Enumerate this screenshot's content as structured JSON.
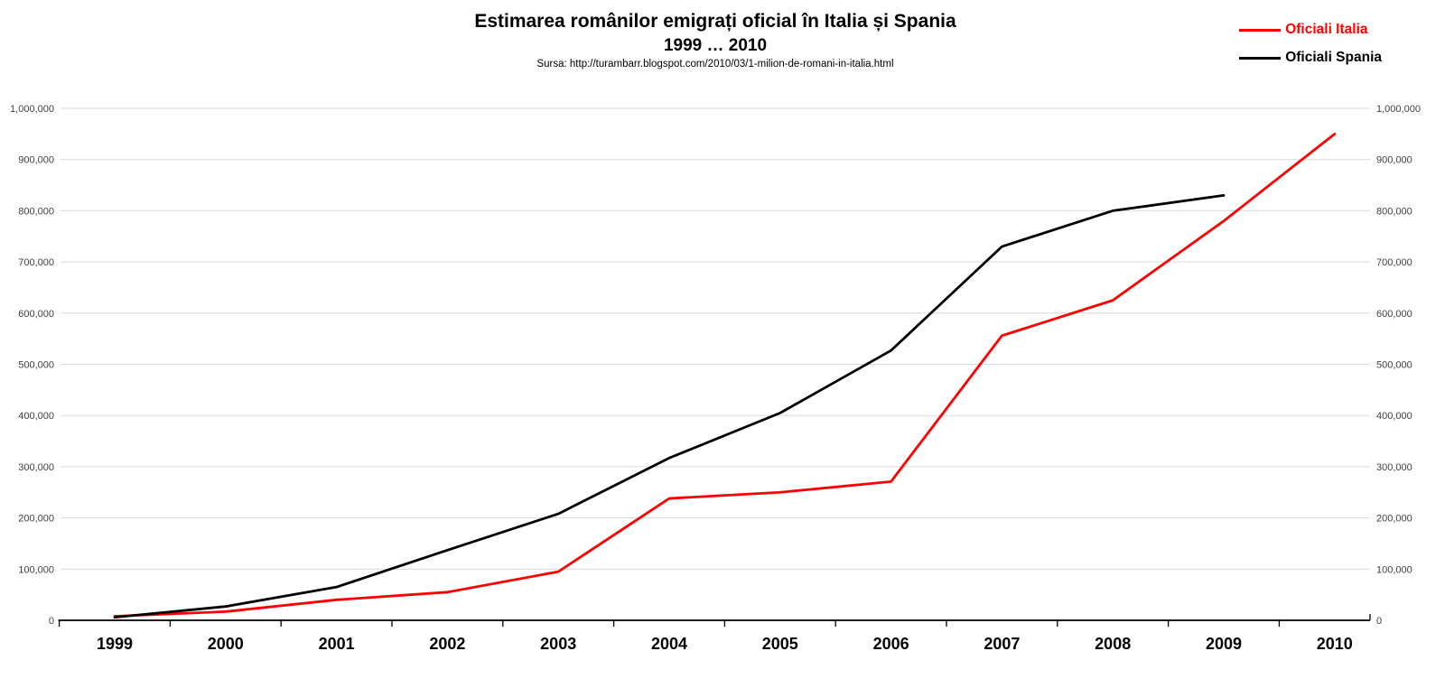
{
  "header": {
    "title": "Estimarea românilor emigrați oficial în Italia și Spania",
    "subtitle": "1999 … 2010",
    "source": "Sursa: http://turambarr.blogspot.com/2010/03/1-milion-de-romani-in-italia.html"
  },
  "colors": {
    "background": "#ffffff",
    "gridline": "#d9d9d9",
    "axis": "#000000",
    "y_tick_label": "#404040",
    "x_tick_label": "#000000",
    "italia_red": "#ff0000",
    "spania_black": "#000000"
  },
  "chart_data": {
    "type": "line",
    "title": "Estimarea românilor emigrați oficial în Italia și Spania",
    "subtitle": "1999 … 2010",
    "source": "Sursa: http://turambarr.blogspot.com/2010/03/1-milion-de-romani-in-italia.html",
    "categories": [
      "1999",
      "2000",
      "2001",
      "2002",
      "2003",
      "2004",
      "2005",
      "2006",
      "2007",
      "2008",
      "2009",
      "2010"
    ],
    "series": [
      {
        "name": "Oficiali Italia",
        "color": "#ff0000",
        "values": [
          8000,
          17000,
          40000,
          55000,
          95000,
          238000,
          250000,
          271000,
          556000,
          625000,
          780000,
          950000
        ]
      },
      {
        "name": "Oficiali Spania",
        "color": "#000000",
        "values": [
          6000,
          27000,
          65000,
          137000,
          208000,
          317000,
          405000,
          527000,
          730000,
          800000,
          830000,
          null
        ]
      }
    ],
    "xlabel": "",
    "ylabel": "",
    "ylim": [
      0,
      1000000
    ],
    "y_tick_step": 100000,
    "y_tick_labels": [
      "0",
      "100,000",
      "200,000",
      "300,000",
      "400,000",
      "500,000",
      "600,000",
      "700,000",
      "800,000",
      "900,000",
      "1,000,000"
    ],
    "grid": "horizontal",
    "legend_position": "top-right",
    "axes": {
      "y_left": true,
      "y_right": true,
      "x_bottom": true
    }
  }
}
